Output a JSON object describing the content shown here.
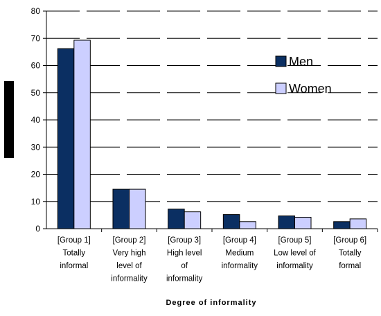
{
  "chart_data": {
    "type": "bar",
    "categories": [
      [
        "[Group 1]",
        "Totally",
        "informal"
      ],
      [
        "[Group 2]",
        "Very high",
        "level of",
        "informality"
      ],
      [
        "[Group 3]",
        "High level",
        "of",
        "informality"
      ],
      [
        "[Group 4]",
        "Medium",
        "informality"
      ],
      [
        "[Group 5]",
        "Low level of",
        "informality"
      ],
      [
        "[Group 6]",
        "Totally",
        "formal"
      ]
    ],
    "series": [
      {
        "name": "Men",
        "color": "#0b2f62",
        "values": [
          66.2,
          14.5,
          7.2,
          5.2,
          4.7,
          2.6
        ]
      },
      {
        "name": "Women",
        "color": "#cccfff",
        "values": [
          69.3,
          14.5,
          6.2,
          2.6,
          4.2,
          3.6
        ]
      }
    ],
    "xlabel": "Degree of informality",
    "ylabel": "",
    "ylim": [
      0,
      80
    ],
    "yticks": [
      0,
      10,
      20,
      30,
      40,
      50,
      60,
      70,
      80
    ],
    "grid": true,
    "legend": "right"
  }
}
